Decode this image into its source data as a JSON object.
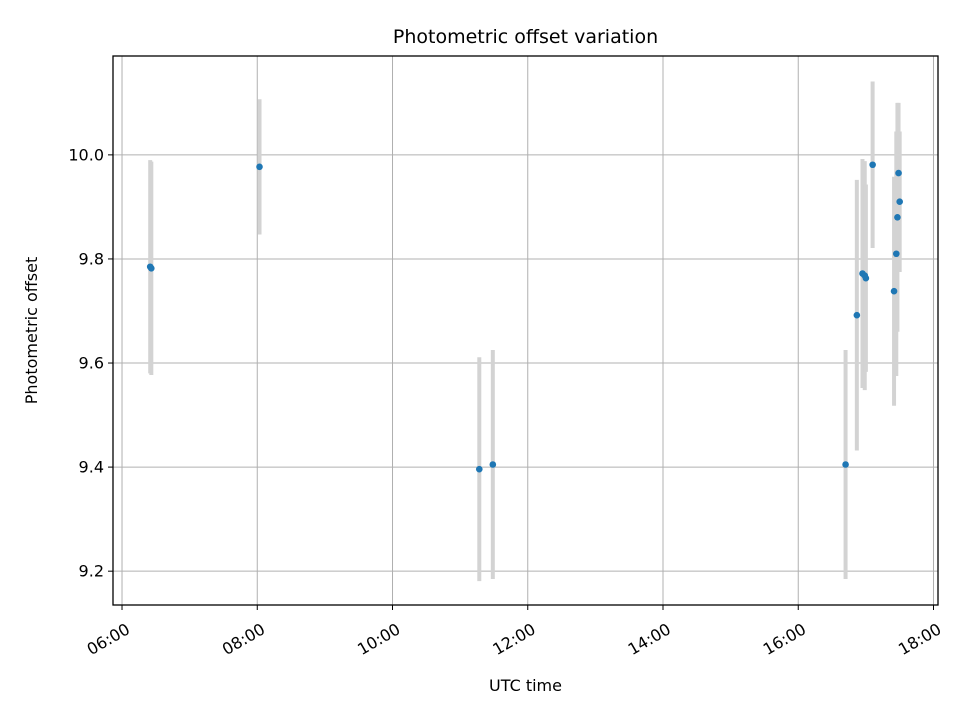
{
  "chart_data": {
    "type": "scatter",
    "title": "Photometric offset variation",
    "xlabel": "UTC time",
    "ylabel": "Photometric offset",
    "x_type": "time",
    "xlim": [
      "05:52",
      "18:04"
    ],
    "ylim": [
      9.135,
      10.19
    ],
    "x_ticks": [
      "06:00",
      "08:00",
      "10:00",
      "12:00",
      "14:00",
      "16:00",
      "18:00"
    ],
    "y_ticks": [
      "9.2",
      "9.4",
      "9.6",
      "9.8",
      "10.0"
    ],
    "grid": true,
    "marker_color": "#1f77b4",
    "errorbar_color": "#d3d3d3",
    "points": [
      {
        "x": "06:25",
        "y": 9.785,
        "err": 0.205
      },
      {
        "x": "06:26",
        "y": 9.782,
        "err": 0.205
      },
      {
        "x": "08:02",
        "y": 9.977,
        "err": 0.13
      },
      {
        "x": "11:17",
        "y": 9.396,
        "err": 0.215
      },
      {
        "x": "11:29",
        "y": 9.405,
        "err": 0.22
      },
      {
        "x": "16:42",
        "y": 9.405,
        "err": 0.22
      },
      {
        "x": "16:52",
        "y": 9.692,
        "err": 0.26
      },
      {
        "x": "16:57",
        "y": 9.772,
        "err": 0.22
      },
      {
        "x": "16:59",
        "y": 9.768,
        "err": 0.22
      },
      {
        "x": "17:00",
        "y": 9.763,
        "err": 0.18
      },
      {
        "x": "17:06",
        "y": 9.981,
        "err": 0.16
      },
      {
        "x": "17:25",
        "y": 9.738,
        "err": 0.22
      },
      {
        "x": "17:27",
        "y": 9.81,
        "err": 0.235
      },
      {
        "x": "17:28",
        "y": 9.88,
        "err": 0.22
      },
      {
        "x": "17:29",
        "y": 9.965,
        "err": 0.135
      },
      {
        "x": "17:30",
        "y": 9.91,
        "err": 0.135
      }
    ]
  }
}
